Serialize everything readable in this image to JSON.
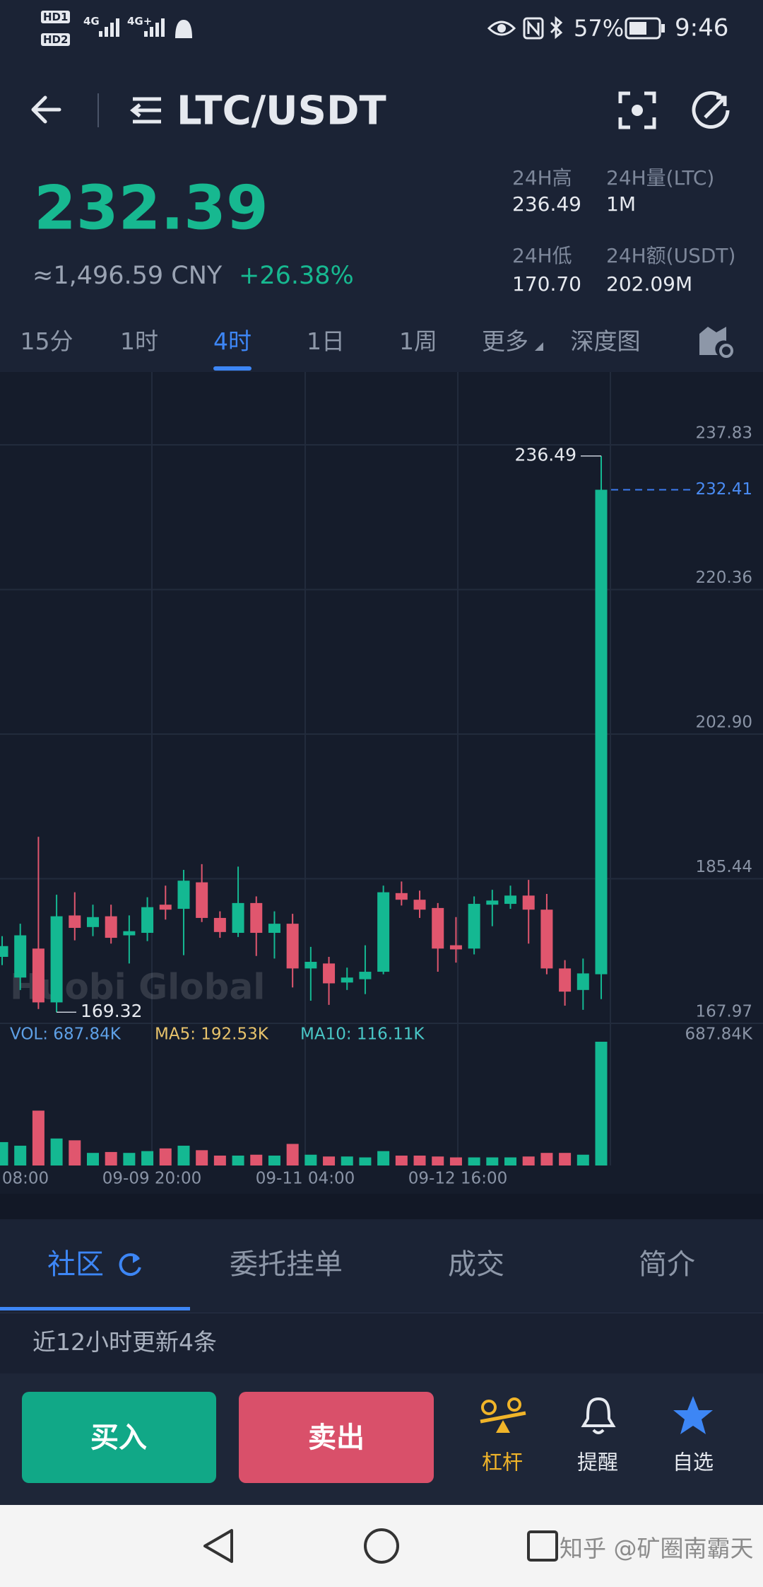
{
  "status_bar": {
    "sims": [
      "HD1",
      "HD2"
    ],
    "network": [
      "4G",
      "4G+"
    ],
    "battery": "57%",
    "time": "9:46"
  },
  "header": {
    "pair": "LTC/USDT"
  },
  "ticker": {
    "price": "232.39",
    "cny": "≈1,496.59 CNY",
    "change": "+26.38%",
    "stats": [
      {
        "label": "24H高",
        "value": "236.49"
      },
      {
        "label": "24H量(LTC)",
        "value": "1M"
      },
      {
        "label": "24H低",
        "value": "170.70"
      },
      {
        "label": "24H额(USDT)",
        "value": "202.09M"
      }
    ]
  },
  "intervals": {
    "items": [
      "15分",
      "1时",
      "4时",
      "1日",
      "1周",
      "更多",
      "深度图"
    ],
    "selected": 2
  },
  "chart": {
    "type": "candlestick",
    "up_color": "#14b892",
    "down_color": "#e0566e",
    "ylim": [
      167.97,
      246.63
    ],
    "yticks": [
      237.83,
      220.36,
      {
        "value": 202.9,
        "label": "202.90"
      },
      185.44,
      167.97
    ],
    "high_marker": 236.49,
    "low_marker": 169.32,
    "last_price": 232.41,
    "watermark": "Huobi Global",
    "candles": [
      {
        "open": 176.0,
        "high": 178.5,
        "low": 175.0,
        "close": 177.3
      },
      {
        "open": 173.5,
        "high": 180.0,
        "low": 172.0,
        "close": 178.6
      },
      {
        "open": 177.0,
        "high": 190.5,
        "low": 169.7,
        "close": 170.5
      },
      {
        "open": 170.5,
        "high": 183.5,
        "low": 169.32,
        "close": 180.9
      },
      {
        "open": 181.0,
        "high": 183.8,
        "low": 178.0,
        "close": 179.5
      },
      {
        "open": 179.6,
        "high": 182.3,
        "low": 178.5,
        "close": 180.8
      },
      {
        "open": 180.9,
        "high": 182.3,
        "low": 177.6,
        "close": 178.3
      },
      {
        "open": 178.6,
        "high": 181.0,
        "low": 175.2,
        "close": 179.1
      },
      {
        "open": 178.9,
        "high": 183.2,
        "low": 177.9,
        "close": 182.0
      },
      {
        "open": 182.3,
        "high": 184.6,
        "low": 180.5,
        "close": 181.7
      },
      {
        "open": 181.8,
        "high": 186.5,
        "low": 176.2,
        "close": 185.2
      },
      {
        "open": 185.0,
        "high": 187.2,
        "low": 180.2,
        "close": 180.7
      },
      {
        "open": 180.7,
        "high": 181.5,
        "low": 178.3,
        "close": 179.0
      },
      {
        "open": 178.9,
        "high": 186.9,
        "low": 178.4,
        "close": 182.5
      },
      {
        "open": 182.5,
        "high": 183.3,
        "low": 176.1,
        "close": 178.9
      },
      {
        "open": 178.9,
        "high": 181.5,
        "low": 175.8,
        "close": 180.0
      },
      {
        "open": 180.0,
        "high": 181.2,
        "low": 172.3,
        "close": 174.6
      },
      {
        "open": 174.6,
        "high": 177.2,
        "low": 170.7,
        "close": 175.4
      },
      {
        "open": 175.2,
        "high": 176.0,
        "low": 170.2,
        "close": 172.8
      },
      {
        "open": 172.9,
        "high": 174.7,
        "low": 172.0,
        "close": 173.5
      },
      {
        "open": 173.3,
        "high": 177.4,
        "low": 171.5,
        "close": 174.2
      },
      {
        "open": 174.2,
        "high": 184.6,
        "low": 173.9,
        "close": 183.8
      },
      {
        "open": 183.7,
        "high": 185.1,
        "low": 182.2,
        "close": 182.9
      },
      {
        "open": 182.9,
        "high": 184.0,
        "low": 180.7,
        "close": 181.7
      },
      {
        "open": 181.9,
        "high": 182.5,
        "low": 174.2,
        "close": 177.0
      },
      {
        "open": 177.4,
        "high": 180.8,
        "low": 175.3,
        "close": 176.9
      },
      {
        "open": 177.0,
        "high": 183.3,
        "low": 176.3,
        "close": 182.4
      },
      {
        "open": 182.3,
        "high": 184.1,
        "low": 179.7,
        "close": 182.8
      },
      {
        "open": 182.4,
        "high": 184.6,
        "low": 181.8,
        "close": 183.4
      },
      {
        "open": 183.4,
        "high": 185.3,
        "low": 177.6,
        "close": 181.7
      },
      {
        "open": 181.7,
        "high": 183.6,
        "low": 173.9,
        "close": 174.6
      },
      {
        "open": 174.6,
        "high": 175.6,
        "low": 170.1,
        "close": 171.8
      },
      {
        "open": 172.0,
        "high": 175.8,
        "low": 169.6,
        "close": 174.0
      },
      {
        "open": 173.9,
        "high": 236.49,
        "low": 170.9,
        "close": 232.41
      }
    ],
    "volume": {
      "ylim": [
        0,
        790
      ],
      "values": [
        130,
        110,
        305,
        150,
        140,
        70,
        75,
        70,
        80,
        95,
        110,
        85,
        55,
        55,
        60,
        55,
        120,
        60,
        50,
        50,
        45,
        80,
        55,
        55,
        50,
        45,
        45,
        45,
        45,
        50,
        70,
        70,
        60,
        687.84
      ],
      "max_label": "687.84K",
      "legend": [
        {
          "text": "VOL: 687.84K",
          "color": "#5ea0e6"
        },
        {
          "text": "MA5: 192.53K",
          "color": "#e8c36b"
        },
        {
          "text": "MA10: 116.11K",
          "color": "#49c6c6"
        }
      ]
    },
    "time_labels": [
      "08:00",
      "09-09 20:00",
      "09-11 04:00",
      "09-12 16:00"
    ]
  },
  "tabs": {
    "items": [
      "社区",
      "委托挂单",
      "成交",
      "简介"
    ],
    "selected": 0
  },
  "feed_note": "近12小时更新4条",
  "actions": {
    "buy": "买入",
    "sell": "卖出",
    "tools": [
      "杠杆",
      "提醒",
      "自选"
    ]
  },
  "watermark": "知乎 @矿圈南霸天"
}
